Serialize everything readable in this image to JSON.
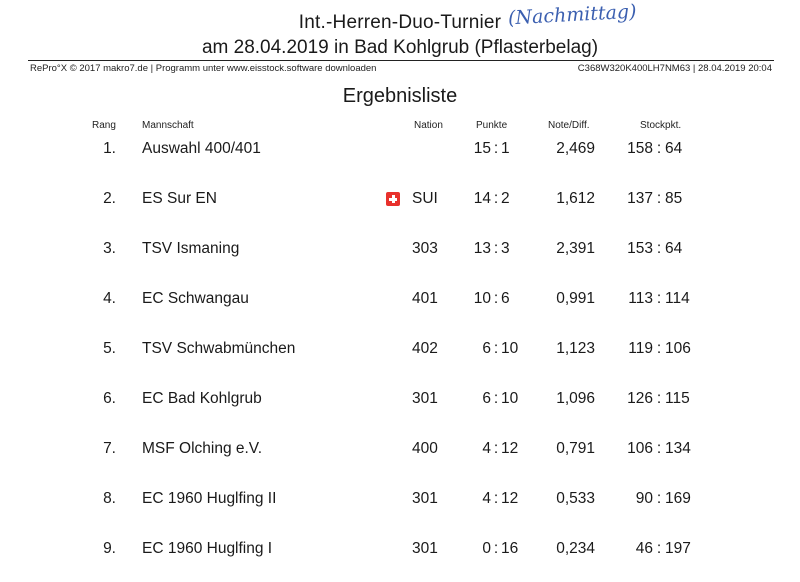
{
  "header": {
    "title_line1": "Int.-Herren-Duo-Turnier",
    "handwritten_note": "(Nachmittag)",
    "title_line2": "am 28.04.2019 in Bad Kohlgrub (Pflasterbelag)",
    "meta_left": "RePro°X © 2017 makro7.de | Programm unter www.eisstock.software downloaden",
    "meta_right": "C368W320K400LH7NM63 | 28.04.2019 20:04"
  },
  "heading": "Ergebnisliste",
  "columns": {
    "rang": "Rang",
    "team": "Mannschaft",
    "nation": "Nation",
    "punkte": "Punkte",
    "note": "Note/Diff.",
    "stock": "Stockpkt."
  },
  "rows": [
    {
      "rang": "1.",
      "team": "Auswahl 400/401",
      "nation": "",
      "flag": false,
      "p1": "15",
      "p2": "1",
      "note": "2,469",
      "s1": "158",
      "s2": "64"
    },
    {
      "rang": "2.",
      "team": "ES Sur EN",
      "nation": "SUI",
      "flag": true,
      "p1": "14",
      "p2": "2",
      "note": "1,612",
      "s1": "137",
      "s2": "85"
    },
    {
      "rang": "3.",
      "team": "TSV Ismaning",
      "nation": "303",
      "flag": false,
      "p1": "13",
      "p2": "3",
      "note": "2,391",
      "s1": "153",
      "s2": "64"
    },
    {
      "rang": "4.",
      "team": "EC Schwangau",
      "nation": "401",
      "flag": false,
      "p1": "10",
      "p2": "6",
      "note": "0,991",
      "s1": "113",
      "s2": "114"
    },
    {
      "rang": "5.",
      "team": "TSV Schwabmünchen",
      "nation": "402",
      "flag": false,
      "p1": "6",
      "p2": "10",
      "note": "1,123",
      "s1": "119",
      "s2": "106"
    },
    {
      "rang": "6.",
      "team": "EC Bad Kohlgrub",
      "nation": "301",
      "flag": false,
      "p1": "6",
      "p2": "10",
      "note": "1,096",
      "s1": "126",
      "s2": "115"
    },
    {
      "rang": "7.",
      "team": "MSF Olching e.V.",
      "nation": "400",
      "flag": false,
      "p1": "4",
      "p2": "12",
      "note": "0,791",
      "s1": "106",
      "s2": "134"
    },
    {
      "rang": "8.",
      "team": "EC 1960 Huglfing II",
      "nation": "301",
      "flag": false,
      "p1": "4",
      "p2": "12",
      "note": "0,533",
      "s1": "90",
      "s2": "169"
    },
    {
      "rang": "9.",
      "team": "EC 1960 Huglfing I",
      "nation": "301",
      "flag": false,
      "p1": "0",
      "p2": "16",
      "note": "0,234",
      "s1": "46",
      "s2": "197"
    }
  ]
}
